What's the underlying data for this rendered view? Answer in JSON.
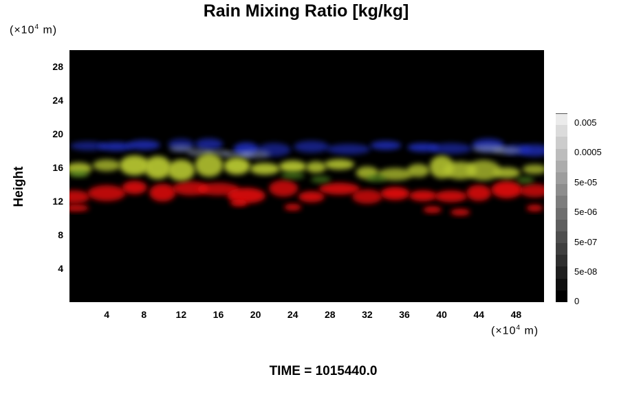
{
  "chart_data": {
    "type": "heatmap",
    "title": "Rain Mixing Ratio [kg/kg]",
    "ylabel": "Height",
    "y_unit_prefix": "(×10",
    "y_unit_exp": "4",
    "y_unit_suffix": " m)",
    "x_unit_prefix": "(×10",
    "x_unit_exp": "4",
    "x_unit_suffix": " m)",
    "xlim": [
      0,
      51
    ],
    "ylim": [
      0,
      30
    ],
    "xticks": [
      "4",
      "8",
      "12",
      "16",
      "20",
      "24",
      "28",
      "32",
      "36",
      "40",
      "44",
      "48"
    ],
    "yticks": [
      "4",
      "8",
      "12",
      "16",
      "20",
      "24",
      "28"
    ],
    "colorbar_labels": [
      "0.005",
      "0.0005",
      "5e-05",
      "5e-06",
      "5e-07",
      "5e-08",
      "0"
    ],
    "colorbar_levels": 16,
    "bands": [
      {
        "name": "red",
        "color": "#e81010",
        "y_range": [
          10.5,
          14.5
        ]
      },
      {
        "name": "yellow-green",
        "color": "#b8c830",
        "y_range": [
          13.5,
          17.5
        ]
      },
      {
        "name": "blue",
        "color": "#2030c8",
        "y_range": [
          16.5,
          20
        ]
      }
    ],
    "time_label": "TIME = 1015440.0"
  }
}
